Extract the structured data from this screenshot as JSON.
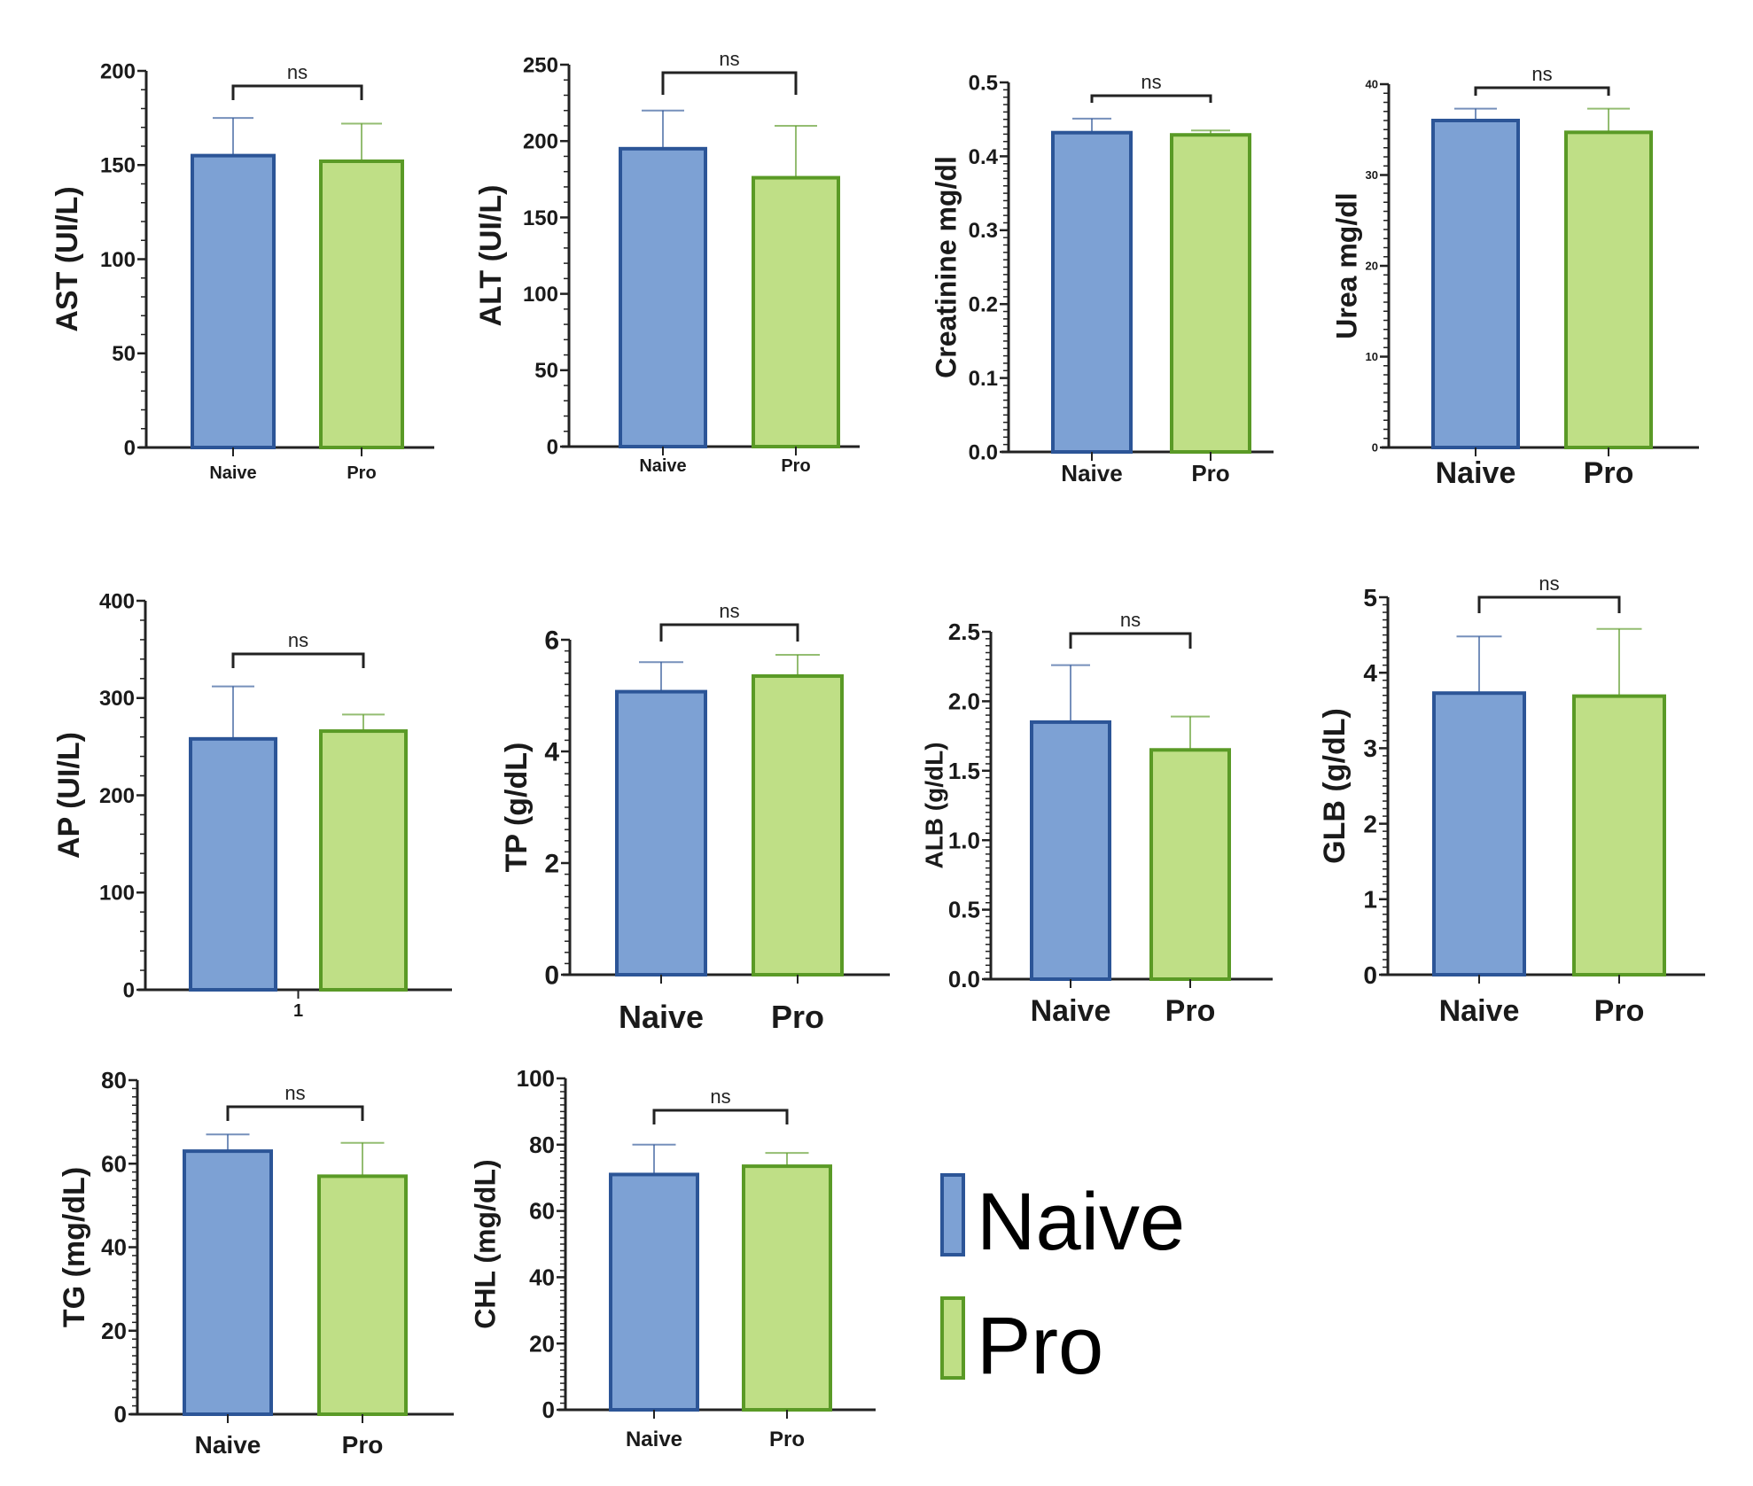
{
  "colors": {
    "naive_fill": "#7da1d4",
    "naive_stroke": "#2c5597",
    "pro_fill": "#bfdf86",
    "pro_stroke": "#5a9a26",
    "axis": "#222222",
    "bracket": "#222222"
  },
  "legend": {
    "placement": "bottom-right",
    "items": [
      {
        "label": "Naive",
        "color_key": "naive"
      },
      {
        "label": "Pro",
        "color_key": "pro"
      }
    ]
  },
  "chart_data": [
    {
      "type": "bar",
      "title": "",
      "ylabel": "AST (UI/L)",
      "xlabel": "",
      "categories": [
        "Naive",
        "Pro"
      ],
      "series": [
        {
          "name": "mean",
          "values": [
            155,
            152
          ]
        },
        {
          "name": "error_upper",
          "values": [
            175,
            172
          ]
        }
      ],
      "ylim": [
        0,
        200
      ],
      "yticks": [
        "0",
        "50",
        "100",
        "150",
        "200"
      ],
      "ytick_values": [
        0,
        50,
        100,
        150,
        200
      ],
      "significance": "ns",
      "grid": false
    },
    {
      "type": "bar",
      "title": "",
      "ylabel": "ALT (UI/L)",
      "xlabel": "",
      "categories": [
        "Naive",
        "Pro"
      ],
      "series": [
        {
          "name": "mean",
          "values": [
            195,
            176
          ]
        },
        {
          "name": "error_upper",
          "values": [
            220,
            210
          ]
        }
      ],
      "ylim": [
        0,
        250
      ],
      "yticks": [
        "0",
        "50",
        "100",
        "150",
        "200",
        "250"
      ],
      "ytick_values": [
        0,
        50,
        100,
        150,
        200,
        250
      ],
      "significance": "ns",
      "grid": false
    },
    {
      "type": "bar",
      "title": "",
      "ylabel": "Creatinine mg/dl",
      "xlabel": "",
      "categories": [
        "Naive",
        "Pro"
      ],
      "series": [
        {
          "name": "mean",
          "values": [
            0.432,
            0.429
          ]
        },
        {
          "name": "error_upper",
          "values": [
            0.451,
            0.435
          ]
        }
      ],
      "ylim": [
        0,
        0.5
      ],
      "yticks": [
        "0.0",
        "0.1",
        "0.2",
        "0.3",
        "0.4",
        "0.5"
      ],
      "ytick_values": [
        0,
        0.1,
        0.2,
        0.3,
        0.4,
        0.5
      ],
      "significance": "ns",
      "grid": false
    },
    {
      "type": "bar",
      "title": "",
      "ylabel": "Urea  mg/dl",
      "xlabel": "",
      "categories": [
        "Naive",
        "Pro"
      ],
      "series": [
        {
          "name": "mean",
          "values": [
            36.0,
            34.7
          ]
        },
        {
          "name": "error_upper",
          "values": [
            37.3,
            37.3
          ]
        }
      ],
      "ylim": [
        0,
        40
      ],
      "yticks": [
        "0",
        "10",
        "20",
        "30",
        "40"
      ],
      "ytick_values": [
        0,
        10,
        20,
        30,
        40
      ],
      "significance": "ns",
      "grid": false
    },
    {
      "type": "bar",
      "title": "",
      "ylabel": "AP (UI/L)",
      "xlabel": "",
      "categories": [
        "1"
      ],
      "series": [
        {
          "name": "Naive",
          "values": [
            258
          ],
          "error_upper": [
            312
          ]
        },
        {
          "name": "Pro",
          "values": [
            266
          ],
          "error_upper": [
            283
          ]
        }
      ],
      "ylim": [
        0,
        400
      ],
      "yticks": [
        "0",
        "100",
        "200",
        "300",
        "400"
      ],
      "ytick_values": [
        0,
        100,
        200,
        300,
        400
      ],
      "significance": "ns",
      "grid": false
    },
    {
      "type": "bar",
      "title": "",
      "ylabel": "TP (g/dL)",
      "xlabel": "",
      "categories": [
        "Naive",
        "Pro"
      ],
      "series": [
        {
          "name": "mean",
          "values": [
            5.07,
            5.35
          ]
        },
        {
          "name": "error_upper",
          "values": [
            5.6,
            5.73
          ]
        }
      ],
      "ylim": [
        0,
        6
      ],
      "yticks": [
        "0",
        "2",
        "4",
        "6"
      ],
      "ytick_values": [
        0,
        2,
        4,
        6
      ],
      "significance": "ns",
      "grid": false
    },
    {
      "type": "bar",
      "title": "",
      "ylabel": "ALB (g/dL)",
      "xlabel": "",
      "categories": [
        "Naive",
        "Pro"
      ],
      "series": [
        {
          "name": "mean",
          "values": [
            1.85,
            1.65
          ]
        },
        {
          "name": "error_upper",
          "values": [
            2.26,
            1.89
          ]
        }
      ],
      "ylim": [
        0,
        2.5
      ],
      "yticks": [
        "0.0",
        "0.5",
        "1.0",
        "1.5",
        "2.0",
        "2.5"
      ],
      "ytick_values": [
        0,
        0.5,
        1.0,
        1.5,
        2.0,
        2.5
      ],
      "significance": "ns",
      "grid": false
    },
    {
      "type": "bar",
      "title": "",
      "ylabel": "GLB (g/dL)",
      "xlabel": "",
      "categories": [
        "Naive",
        "Pro"
      ],
      "series": [
        {
          "name": "mean",
          "values": [
            3.73,
            3.69
          ]
        },
        {
          "name": "error_upper",
          "values": [
            4.48,
            4.58
          ]
        }
      ],
      "ylim": [
        0,
        5
      ],
      "yticks": [
        "0",
        "1",
        "2",
        "3",
        "4",
        "5"
      ],
      "ytick_values": [
        0,
        1,
        2,
        3,
        4,
        5
      ],
      "significance": "ns",
      "grid": false
    },
    {
      "type": "bar",
      "title": "",
      "ylabel": "TG (mg/dL)",
      "xlabel": "",
      "categories": [
        "Naive",
        "Pro"
      ],
      "series": [
        {
          "name": "mean",
          "values": [
            63,
            57
          ]
        },
        {
          "name": "error_upper",
          "values": [
            67,
            65
          ]
        }
      ],
      "ylim": [
        0,
        80
      ],
      "yticks": [
        "0",
        "20",
        "40",
        "60",
        "80"
      ],
      "ytick_values": [
        0,
        20,
        40,
        60,
        80
      ],
      "significance": "ns",
      "grid": false
    },
    {
      "type": "bar",
      "title": "",
      "ylabel": "CHL (mg/dL)",
      "xlabel": "",
      "categories": [
        "Naive",
        "Pro"
      ],
      "series": [
        {
          "name": "mean",
          "values": [
            71,
            73.5
          ]
        },
        {
          "name": "error_upper",
          "values": [
            80,
            77.5
          ]
        }
      ],
      "ylim": [
        0,
        100
      ],
      "yticks": [
        "0",
        "20",
        "40",
        "60",
        "80",
        "100"
      ],
      "ytick_values": [
        0,
        20,
        40,
        60,
        80,
        100
      ],
      "significance": "ns",
      "grid": false
    }
  ]
}
